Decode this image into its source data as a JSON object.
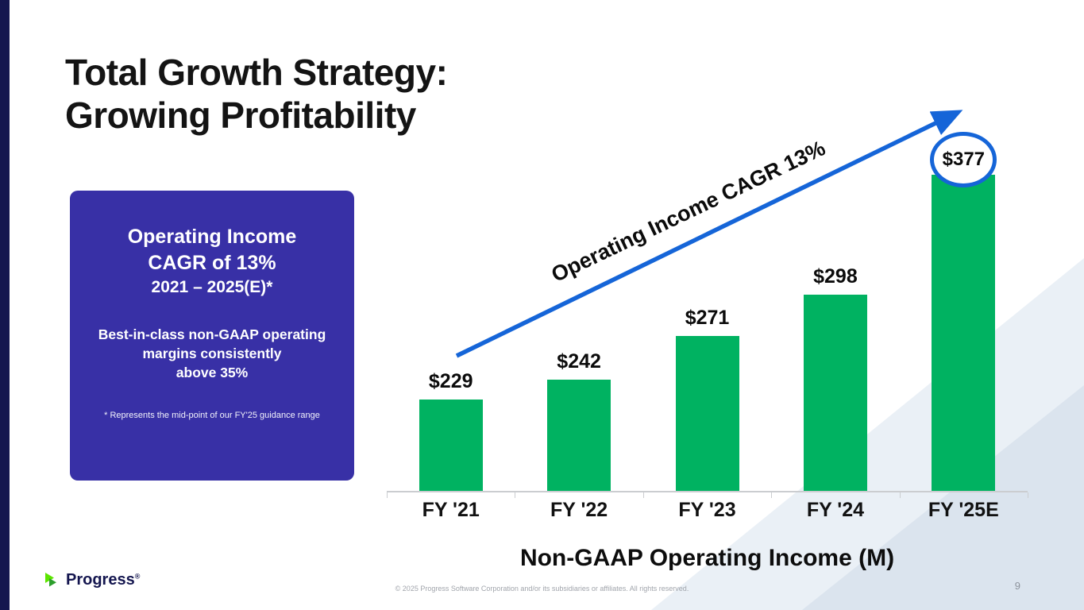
{
  "slide": {
    "title_line1": "Total Growth Strategy:",
    "title_line2": "Growing Profitability",
    "page_number": "9",
    "copyright": "© 2025 Progress Software Corporation and/or its subsidiaries or affiliates. All rights reserved.",
    "logo_text": "Progress",
    "logo_reg": "®"
  },
  "callout": {
    "heading_line1": "Operating Income",
    "heading_line2": "CAGR of 13%",
    "heading_line3": "2021 – 2025(E)*",
    "body_line1": "Best-in-class non-GAAP operating",
    "body_line2": "margins consistently",
    "body_line3": "above 35%",
    "footnote": "* Represents the mid-point of our FY'25 guidance range",
    "background_color": "#3830a6"
  },
  "chart_data": {
    "type": "bar",
    "title": "Non-GAAP Operating Income (M)",
    "categories": [
      "FY '21",
      "FY '22",
      "FY '23",
      "FY '24",
      "FY '25E"
    ],
    "values": [
      229,
      242,
      271,
      298,
      377
    ],
    "value_labels": [
      "$229",
      "$242",
      "$271",
      "$298",
      "$377"
    ],
    "annotation": "Operating Income CAGR 13%",
    "highlighted_index": 4,
    "ylim": [
      0,
      400
    ],
    "legend": "none",
    "grid": "off",
    "bar_color": "#00b261",
    "accent_blue": "#1565d8"
  }
}
